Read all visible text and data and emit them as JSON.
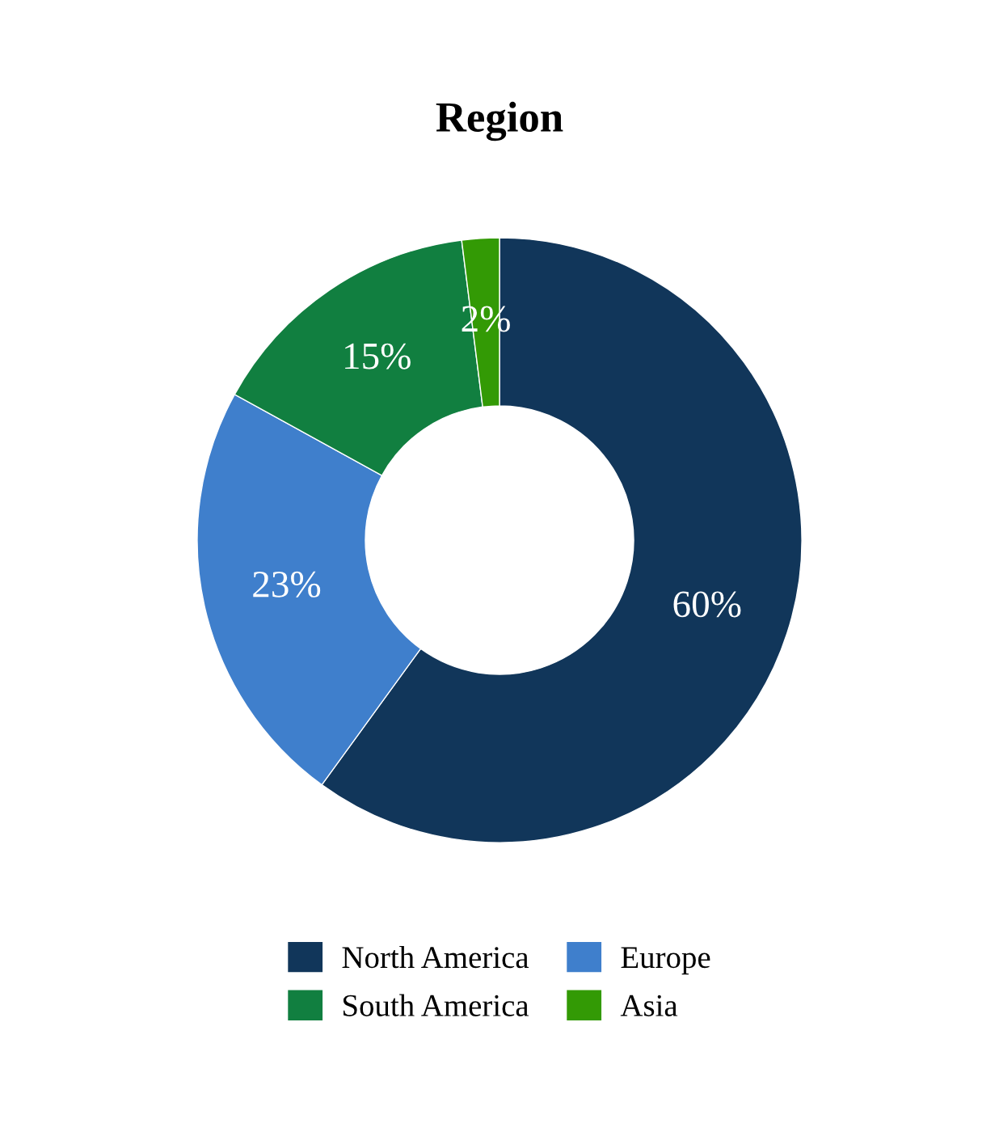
{
  "chart_data": {
    "type": "donut",
    "title": "Region",
    "categories": [
      "North America",
      "Europe",
      "South America",
      "Asia"
    ],
    "values": [
      60,
      23,
      15,
      2
    ],
    "colors": [
      "#11365a",
      "#3f7fcc",
      "#117f40",
      "#339a05"
    ],
    "value_labels": [
      "60%",
      "23%",
      "15%",
      "2%"
    ],
    "legend": "bottom"
  }
}
